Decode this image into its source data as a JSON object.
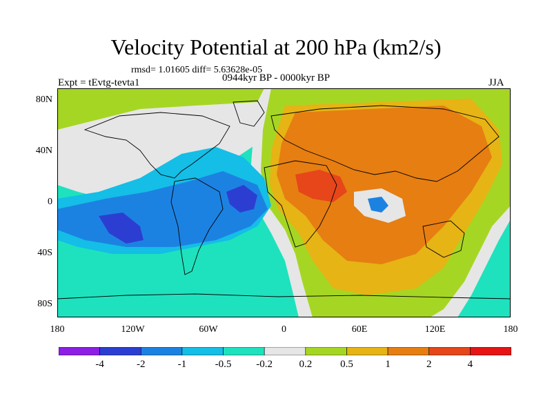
{
  "title": "Velocity Potential at 200 hPa (km2/s)",
  "stats": "rmsd= 1.01605 diff= 5.63628e-05",
  "experiment": "Expt = tEvtg-tevta1",
  "period": "0944kyr BP - 0000kyr BP",
  "season": "JJA",
  "x_axis": {
    "ticks": [
      "180",
      "120W",
      "60W",
      "0",
      "60E",
      "120E",
      "180"
    ],
    "range": [
      -180,
      180
    ]
  },
  "y_axis": {
    "ticks": [
      "80N",
      "40N",
      "0",
      "40S",
      "80S"
    ],
    "range": [
      -90,
      90
    ]
  },
  "colorbar": {
    "labels": [
      "-4",
      "-2",
      "-1",
      "-0.5",
      "-0.2",
      "0.2",
      "0.5",
      "1",
      "2",
      "4"
    ],
    "colors": [
      "#8c1ee6",
      "#2c3ed2",
      "#1c82e2",
      "#14bee6",
      "#1ee2be",
      "#e6e6e6",
      "#a6d624",
      "#e6b414",
      "#e67e12",
      "#e6461a",
      "#e61414"
    ]
  }
}
